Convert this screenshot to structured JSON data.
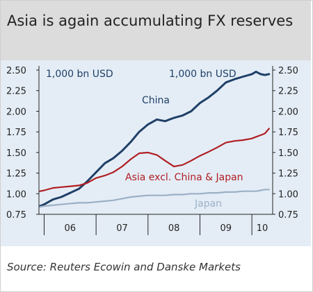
{
  "title": "Asia is again accumulating FX reserves",
  "source": "Source: Reuters Ecowin and Danske Markets",
  "chart_data": {
    "type": "line",
    "ylim": [
      0.75,
      2.5
    ],
    "y_ticks": [
      "2.50",
      "2.25",
      "2.00",
      "1.75",
      "1.50",
      "1.25",
      "1.00",
      "0.75"
    ],
    "x_ticks": [
      "06",
      "07",
      "08",
      "09",
      "10"
    ],
    "x_range": [
      2005.9,
      2010.4
    ],
    "annotations": [
      "1,000 bn USD",
      "1,000 bn USD"
    ],
    "grid": false,
    "series": [
      {
        "name": "China",
        "color": "#1f3f66",
        "x": [
          2005.92,
          2006.0,
          2006.17,
          2006.33,
          2006.5,
          2006.67,
          2006.83,
          2007.0,
          2007.17,
          2007.33,
          2007.5,
          2007.67,
          2007.83,
          2008.0,
          2008.17,
          2008.33,
          2008.5,
          2008.67,
          2008.83,
          2009.0,
          2009.17,
          2009.33,
          2009.5,
          2009.67,
          2009.83,
          2010.0,
          2010.08,
          2010.17,
          2010.25,
          2010.33
        ],
        "values": [
          0.85,
          0.87,
          0.93,
          0.96,
          1.01,
          1.06,
          1.15,
          1.26,
          1.37,
          1.43,
          1.52,
          1.63,
          1.75,
          1.84,
          1.9,
          1.88,
          1.92,
          1.95,
          2.0,
          2.1,
          2.17,
          2.25,
          2.35,
          2.39,
          2.42,
          2.45,
          2.48,
          2.45,
          2.44,
          2.45
        ]
      },
      {
        "name": "Asia excl. China & Japan",
        "color": "#b01e23",
        "x": [
          2005.92,
          2006.0,
          2006.17,
          2006.33,
          2006.5,
          2006.67,
          2006.83,
          2007.0,
          2007.17,
          2007.33,
          2007.5,
          2007.67,
          2007.83,
          2008.0,
          2008.17,
          2008.33,
          2008.5,
          2008.67,
          2008.83,
          2009.0,
          2009.17,
          2009.33,
          2009.5,
          2009.67,
          2009.83,
          2010.0,
          2010.08,
          2010.17,
          2010.25,
          2010.33
        ],
        "values": [
          1.03,
          1.04,
          1.07,
          1.08,
          1.09,
          1.1,
          1.13,
          1.19,
          1.22,
          1.26,
          1.33,
          1.42,
          1.49,
          1.5,
          1.47,
          1.4,
          1.33,
          1.35,
          1.4,
          1.46,
          1.51,
          1.56,
          1.62,
          1.64,
          1.65,
          1.67,
          1.69,
          1.71,
          1.73,
          1.79
        ]
      },
      {
        "name": "Japan",
        "color": "#9bb0c6",
        "x": [
          2005.92,
          2006.0,
          2006.17,
          2006.33,
          2006.5,
          2006.67,
          2006.83,
          2007.0,
          2007.17,
          2007.33,
          2007.5,
          2007.67,
          2007.83,
          2008.0,
          2008.17,
          2008.33,
          2008.5,
          2008.67,
          2008.83,
          2009.0,
          2009.17,
          2009.33,
          2009.5,
          2009.67,
          2009.83,
          2010.0,
          2010.08,
          2010.17,
          2010.25,
          2010.33
        ],
        "values": [
          0.84,
          0.85,
          0.86,
          0.87,
          0.88,
          0.89,
          0.89,
          0.9,
          0.91,
          0.92,
          0.94,
          0.96,
          0.97,
          0.98,
          0.98,
          0.98,
          0.99,
          0.99,
          1.0,
          1.0,
          1.01,
          1.01,
          1.02,
          1.02,
          1.03,
          1.03,
          1.03,
          1.04,
          1.05,
          1.05
        ]
      }
    ]
  }
}
